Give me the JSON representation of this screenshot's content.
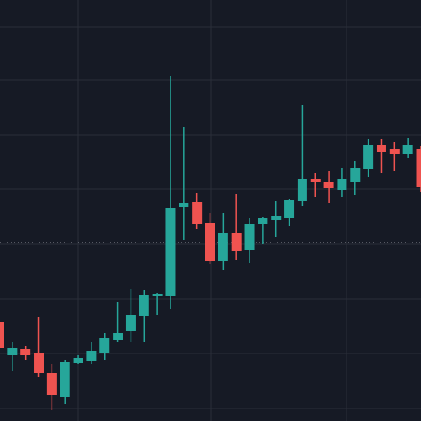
{
  "chart_data": {
    "type": "candlestick",
    "categories": [
      null,
      null,
      null,
      null,
      null,
      null,
      null,
      null,
      null,
      null,
      null,
      null,
      null,
      null,
      null,
      null,
      null,
      null,
      null,
      null,
      null,
      null,
      null,
      null,
      null,
      null,
      null,
      null,
      null,
      null,
      null,
      null,
      null
    ],
    "open": [
      112,
      74,
      81,
      77,
      54,
      27,
      65,
      68,
      77,
      91,
      101,
      118,
      141,
      141,
      241,
      247,
      223,
      180,
      212,
      193,
      222,
      226,
      229,
      248,
      273,
      269,
      260,
      269,
      284,
      311,
      306,
      301,
      306
    ],
    "high": [
      116,
      89,
      84,
      117,
      64,
      69,
      74,
      89,
      99,
      134,
      149,
      148,
      144,
      388,
      331,
      257,
      234,
      234,
      256,
      229,
      230,
      248,
      250,
      356,
      279,
      281,
      285,
      293,
      317,
      318,
      314,
      319,
      310
    ],
    "low": [
      74,
      56,
      69,
      49,
      12,
      19,
      64,
      64,
      69,
      89,
      89,
      89,
      119,
      126,
      204,
      216,
      177,
      170,
      181,
      178,
      199,
      207,
      219,
      242,
      252,
      246,
      252,
      254,
      275,
      279,
      282,
      296,
      258
    ],
    "close": [
      82,
      82,
      74,
      54,
      29,
      66,
      71,
      79,
      93,
      99,
      119,
      142,
      143,
      240,
      246,
      222,
      180,
      212,
      191,
      222,
      228,
      231,
      249,
      273,
      269,
      262,
      272,
      285,
      311,
      303,
      301,
      311,
      264
    ],
    "up_color": "#26a69a",
    "down_color": "#ef5350",
    "ylim": [
      0,
      474
    ],
    "yticks": [
      14,
      76,
      137,
      199,
      261,
      322,
      384,
      444
    ],
    "grid": true,
    "price_line": 201
  }
}
